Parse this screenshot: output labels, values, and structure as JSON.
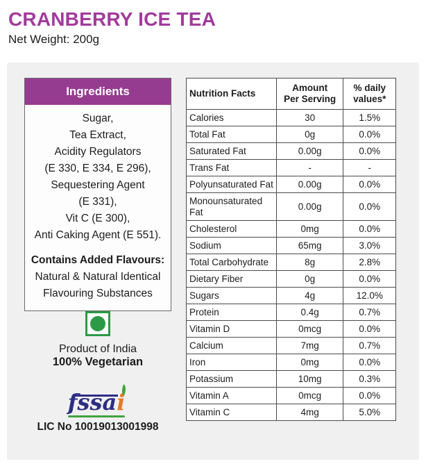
{
  "colors": {
    "accent": "#a23a9c",
    "accent2": "#963c90",
    "veg": "#2c9a47",
    "fssai-navy": "#2b2e83",
    "fssai-orange": "#e97a24",
    "leaf": "#41a33e",
    "panel": "#f1f0f1"
  },
  "header": {
    "title": "CRANBERRY ICE TEA",
    "net_weight": "Net Weight: 200g"
  },
  "ingredients": {
    "heading": "Ingredients",
    "lines": [
      "Sugar,",
      "Tea Extract,",
      "Acidity Regulators",
      "(E 330, E 334, E 296),",
      "Sequestering Agent",
      "(E 331),",
      "Vit C (E 300),",
      "Anti Caking Agent (E 551)."
    ],
    "flavours_heading": "Contains Added Flavours:",
    "flavours_lines": [
      "Natural & Natural Identical",
      "Flavouring Substances"
    ]
  },
  "origin": {
    "product_of": "Product of India",
    "vegetarian": "100% Vegetarian"
  },
  "license": {
    "logo_text_main": "fssa",
    "logo_text_i": "i",
    "lic_no": "LIC No 10019013001998"
  },
  "nutrition": {
    "header_label": "Nutrition Facts",
    "header_amount": "Amount\nPer Serving",
    "header_dv": "% daily\nvalues*",
    "rows": [
      {
        "label": "Calories",
        "amount": "30",
        "dv": "1.5%"
      },
      {
        "label": "Total Fat",
        "amount": "0g",
        "dv": "0.0%"
      },
      {
        "label": "Saturated Fat",
        "amount": "0.00g",
        "dv": "0.0%"
      },
      {
        "label": "Trans Fat",
        "amount": "-",
        "dv": "-"
      },
      {
        "label": "Polyunsaturated Fat",
        "amount": "0.00g",
        "dv": "0.0%"
      },
      {
        "label": "Monounsaturated Fat",
        "amount": "0.00g",
        "dv": "0.0%"
      },
      {
        "label": "Cholesterol",
        "amount": "0mg",
        "dv": "0.0%"
      },
      {
        "label": "Sodium",
        "amount": "65mg",
        "dv": "3.0%"
      },
      {
        "label": "Total Carbohydrate",
        "amount": "8g",
        "dv": "2.8%"
      },
      {
        "label": "Dietary Fiber",
        "amount": "0g",
        "dv": "0.0%"
      },
      {
        "label": "Sugars",
        "amount": "4g",
        "dv": "12.0%"
      },
      {
        "label": "Protein",
        "amount": "0.4g",
        "dv": "0.7%"
      },
      {
        "label": "Vitamin D",
        "amount": "0mcg",
        "dv": "0.0%"
      },
      {
        "label": "Calcium",
        "amount": "7mg",
        "dv": "0.7%"
      },
      {
        "label": "Iron",
        "amount": "0mg",
        "dv": "0.0%"
      },
      {
        "label": "Potassium",
        "amount": "10mg",
        "dv": "0.3%"
      },
      {
        "label": "Vitamin A",
        "amount": "0mcg",
        "dv": "0.0%"
      },
      {
        "label": "Vitamin C",
        "amount": "4mg",
        "dv": "5.0%"
      }
    ]
  }
}
